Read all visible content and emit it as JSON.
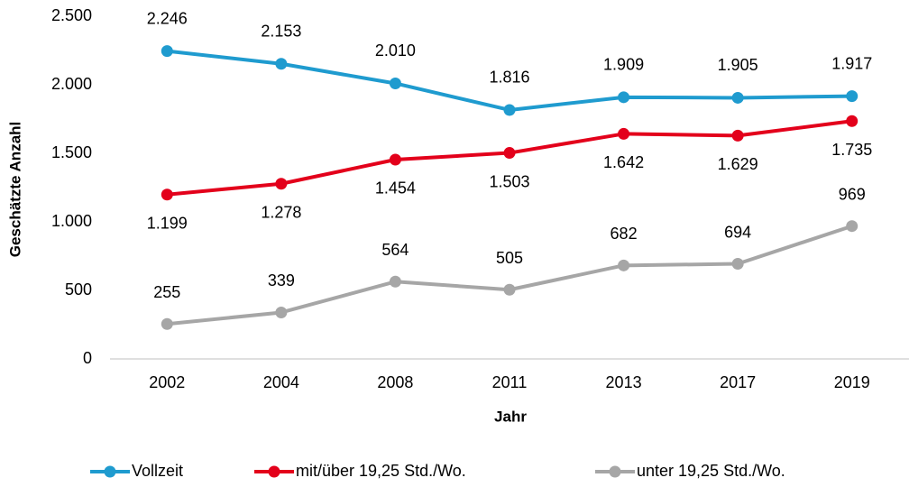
{
  "chart_data": {
    "type": "line",
    "x_label": "Jahr",
    "y_label": "Geschätzte Anzahl",
    "categories": [
      "2002",
      "2004",
      "2008",
      "2011",
      "2013",
      "2017",
      "2019"
    ],
    "series": [
      {
        "name": "Vollzeit",
        "color": "#1f9bcf",
        "values": [
          2246,
          2153,
          2010,
          1816,
          1909,
          1905,
          1917
        ],
        "value_labels": [
          "2.246",
          "2.153",
          "2.010",
          "1.816",
          "1.909",
          "1.905",
          "1.917"
        ]
      },
      {
        "name": "mit/über 19,25 Std./Wo.",
        "color": "#e3001b",
        "values": [
          1199,
          1278,
          1454,
          1503,
          1642,
          1629,
          1735
        ],
        "value_labels": [
          "1.199",
          "1.278",
          "1.454",
          "1.503",
          "1.642",
          "1.629",
          "1.735"
        ]
      },
      {
        "name": "unter 19,25 Std./Wo.",
        "color": "#a6a6a6",
        "values": [
          255,
          339,
          564,
          505,
          682,
          694,
          969
        ],
        "value_labels": [
          "255",
          "339",
          "564",
          "505",
          "682",
          "694",
          "969"
        ]
      }
    ],
    "ylim": [
      0,
      2500
    ],
    "yticks": [
      0,
      500,
      {
        "value": 1000,
        "label": "1.000"
      },
      {
        "value": 1500,
        "label": "1.500"
      },
      {
        "value": 2000,
        "label": "2.000"
      },
      {
        "value": 2500,
        "label": "2.500"
      }
    ],
    "grid": false,
    "legend": "bottom"
  }
}
